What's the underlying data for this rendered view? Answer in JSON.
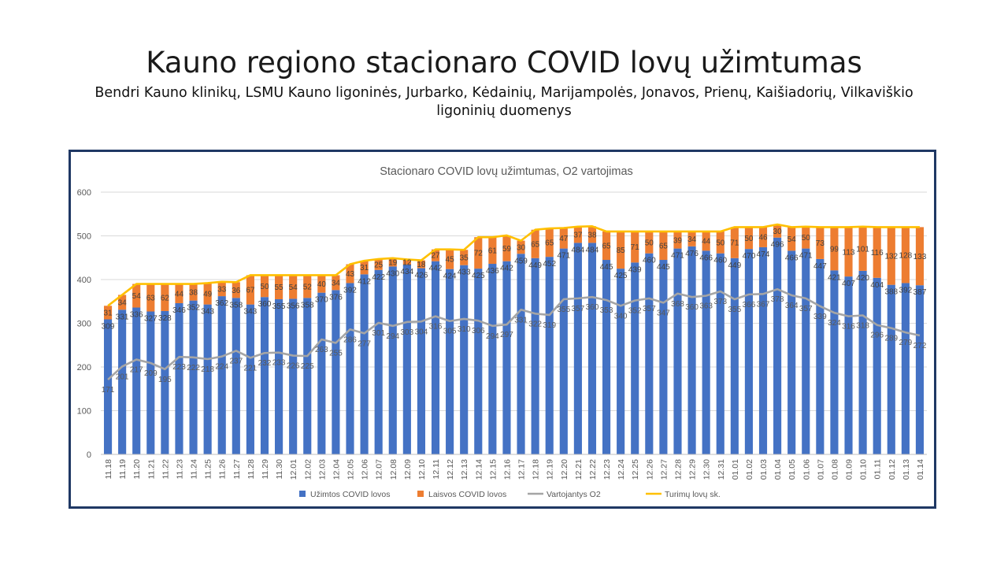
{
  "page": {
    "title": "Kauno regiono stacionaro COVID lovų užimtumas",
    "subtitle": "Bendri Kauno klinikų, LSMU Kauno ligoninės, Jurbarko, Kėdainių, Marijampolės, Jonavos, Prienų, Kaišiadorių, Vilkaviškio ligoninių duomenys"
  },
  "colors": {
    "occupied": "#4472c4",
    "free": "#ed7d31",
    "oxygen": "#a5a5a5",
    "total": "#ffc000",
    "frame": "#1f3864",
    "grid": "#d9d9d9",
    "text": "#595959"
  },
  "chart_data": {
    "type": "bar",
    "stacked": true,
    "title": "Stacionaro COVID lovų užimtumas, O2 vartojimas",
    "xlabel": "",
    "ylabel": "",
    "ylim": [
      0,
      600
    ],
    "yticks": [
      0,
      100,
      200,
      300,
      400,
      500,
      600
    ],
    "grid": true,
    "legend_position": "bottom",
    "categories": [
      "11.18",
      "11.19",
      "11.20",
      "11.21",
      "11.22",
      "11.23",
      "11.24",
      "11.25",
      "11.26",
      "11.27",
      "11.28",
      "11.29",
      "11.30",
      "12.01",
      "12.02",
      "12.03",
      "12.04",
      "12.05",
      "12.06",
      "12.07",
      "12.08",
      "12.09",
      "12.10",
      "12.11",
      "12.12",
      "12.13",
      "12.14",
      "12.15",
      "12.16",
      "12.17",
      "12.18",
      "12.19",
      "12.20",
      "12.21",
      "12.22",
      "12.23",
      "12.24",
      "12.25",
      "12.26",
      "12.27",
      "12.28",
      "12.29",
      "12.30",
      "12.31",
      "01.01",
      "01.02",
      "01.03",
      "01.04",
      "01.05",
      "01.06",
      "01.07",
      "01.08",
      "01.09",
      "01.10",
      "01.11",
      "01.12",
      "01.13",
      "01.14"
    ],
    "series": [
      {
        "name": "Užimtos COVID lovos",
        "kind": "bar",
        "values": [
          309,
          331,
          336,
          327,
          328,
          346,
          352,
          343,
          362,
          358,
          343,
          360,
          355,
          356,
          358,
          370,
          376,
          392,
          412,
          422,
          430,
          434,
          426,
          442,
          424,
          433,
          425,
          436,
          442,
          459,
          449,
          452,
          471,
          484,
          484,
          445,
          425,
          439,
          460,
          445,
          471,
          476,
          466,
          460,
          449,
          470,
          474,
          496,
          466,
          471,
          447,
          421,
          407,
          420,
          404,
          388,
          392,
          387
        ]
      },
      {
        "name": "Laisvos COVID lovos",
        "kind": "bar",
        "values": [
          31,
          34,
          54,
          63,
          62,
          44,
          38,
          49,
          33,
          36,
          67,
          50,
          55,
          54,
          52,
          40,
          34,
          43,
          31,
          25,
          19,
          12,
          18,
          27,
          45,
          35,
          72,
          61,
          59,
          30,
          65,
          65,
          47,
          37,
          38,
          65,
          85,
          71,
          50,
          65,
          39,
          34,
          44,
          50,
          71,
          50,
          46,
          30,
          54,
          50,
          73,
          99,
          113,
          101,
          116,
          132,
          128,
          133
        ]
      },
      {
        "name": "Vartojantys O2",
        "kind": "line",
        "values": [
          171,
          201,
          217,
          209,
          195,
          223,
          222,
          218,
          224,
          237,
          221,
          232,
          233,
          226,
          225,
          263,
          255,
          286,
          277,
          301,
          294,
          303,
          304,
          316,
          305,
          310,
          306,
          294,
          297,
          331,
          322,
          319,
          355,
          357,
          360,
          353,
          340,
          352,
          357,
          347,
          368,
          360,
          363,
          373,
          355,
          366,
          367,
          378,
          364,
          357,
          339,
          324,
          316,
          318,
          296,
          289,
          279,
          272
        ]
      },
      {
        "name": "Turimų lovų sk.",
        "kind": "line",
        "values": [
          340,
          365,
          390,
          390,
          390,
          390,
          390,
          392,
          395,
          394,
          410,
          410,
          410,
          410,
          410,
          410,
          410,
          435,
          443,
          447,
          449,
          446,
          444,
          469,
          469,
          468,
          497,
          497,
          501,
          489,
          514,
          517,
          518,
          521,
          522,
          510,
          510,
          510,
          510,
          510,
          510,
          510,
          510,
          510,
          520,
          520,
          520,
          526,
          520,
          521,
          520,
          520,
          520,
          521,
          520,
          520,
          520,
          520
        ]
      }
    ]
  }
}
